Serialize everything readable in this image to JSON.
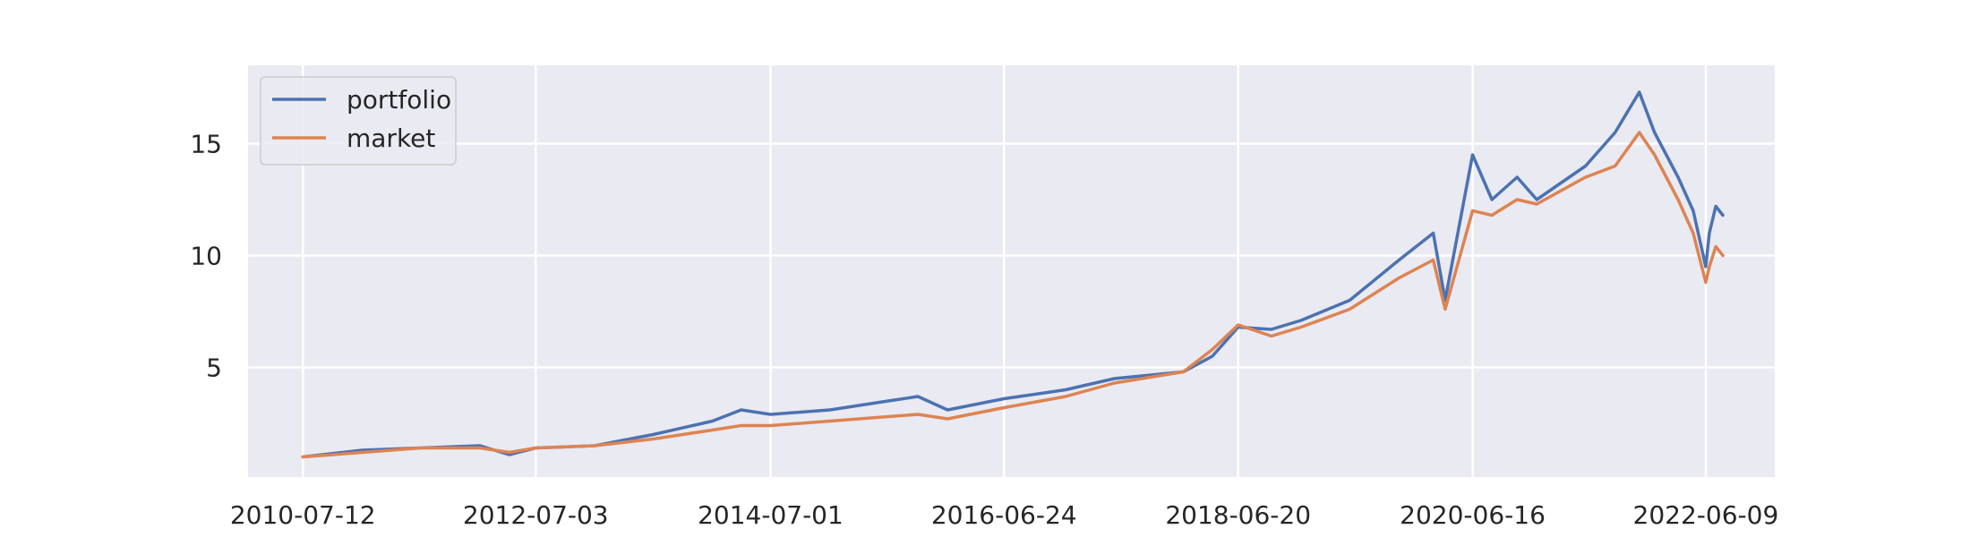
{
  "chart_data": {
    "type": "line",
    "title": "",
    "xlabel": "",
    "ylabel": "",
    "x_tick_labels": [
      "2010-07-12",
      "2012-07-03",
      "2014-07-01",
      "2016-06-24",
      "2018-06-20",
      "2020-06-16",
      "2022-06-09"
    ],
    "y_ticks": [
      5,
      10,
      15
    ],
    "xlim": [
      "2010-01-23",
      "2023-01-09"
    ],
    "ylim": [
      0.1,
      18.5
    ],
    "grid": true,
    "legend_position": "top-left",
    "background": "#eaeaf2",
    "series": [
      {
        "name": "portfolio",
        "color": "#4c72b0",
        "x": [
          "2010-07-12",
          "2011-01-12",
          "2011-07-12",
          "2012-01-12",
          "2012-04-12",
          "2012-07-03",
          "2013-01-02",
          "2013-07-02",
          "2014-01-02",
          "2014-04-01",
          "2014-07-01",
          "2015-01-01",
          "2015-07-01",
          "2015-10-01",
          "2016-01-01",
          "2016-06-24",
          "2017-01-01",
          "2017-06-01",
          "2018-01-01",
          "2018-04-01",
          "2018-06-20",
          "2018-10-01",
          "2019-01-01",
          "2019-06-01",
          "2019-11-01",
          "2020-02-15",
          "2020-03-23",
          "2020-06-16",
          "2020-08-15",
          "2020-11-01",
          "2021-01-01",
          "2021-06-01",
          "2021-09-01",
          "2021-11-15",
          "2022-01-01",
          "2022-03-15",
          "2022-05-01",
          "2022-06-09",
          "2022-06-20",
          "2022-07-10",
          "2022-08-01"
        ],
        "y": [
          1.0,
          1.3,
          1.4,
          1.5,
          1.1,
          1.4,
          1.5,
          2.0,
          2.6,
          3.1,
          2.9,
          3.1,
          3.5,
          3.7,
          3.1,
          3.6,
          4.0,
          4.5,
          4.8,
          5.5,
          6.8,
          6.7,
          7.1,
          8.0,
          9.8,
          11.0,
          8.0,
          14.5,
          12.5,
          13.5,
          12.5,
          14.0,
          15.5,
          17.3,
          15.5,
          13.5,
          12.0,
          9.5,
          11.0,
          12.2,
          11.8
        ]
      },
      {
        "name": "market",
        "color": "#dd8452",
        "x": [
          "2010-07-12",
          "2011-01-12",
          "2011-07-12",
          "2012-01-12",
          "2012-04-12",
          "2012-07-03",
          "2013-01-02",
          "2013-07-02",
          "2014-01-02",
          "2014-04-01",
          "2014-07-01",
          "2015-01-01",
          "2015-07-01",
          "2015-10-01",
          "2016-01-01",
          "2016-06-24",
          "2017-01-01",
          "2017-06-01",
          "2018-01-01",
          "2018-04-01",
          "2018-06-20",
          "2018-10-01",
          "2019-01-01",
          "2019-06-01",
          "2019-11-01",
          "2020-02-15",
          "2020-03-23",
          "2020-06-16",
          "2020-08-15",
          "2020-11-01",
          "2021-01-01",
          "2021-06-01",
          "2021-09-01",
          "2021-11-15",
          "2022-01-01",
          "2022-03-15",
          "2022-05-01",
          "2022-06-09",
          "2022-06-20",
          "2022-07-10",
          "2022-08-01"
        ],
        "y": [
          1.0,
          1.2,
          1.4,
          1.4,
          1.2,
          1.4,
          1.5,
          1.8,
          2.2,
          2.4,
          2.4,
          2.6,
          2.8,
          2.9,
          2.7,
          3.2,
          3.7,
          4.3,
          4.8,
          5.8,
          6.9,
          6.4,
          6.8,
          7.6,
          9.0,
          9.8,
          7.6,
          12.0,
          11.8,
          12.5,
          12.3,
          13.5,
          14.0,
          15.5,
          14.5,
          12.5,
          11.0,
          8.8,
          9.5,
          10.4,
          10.0
        ]
      }
    ]
  }
}
